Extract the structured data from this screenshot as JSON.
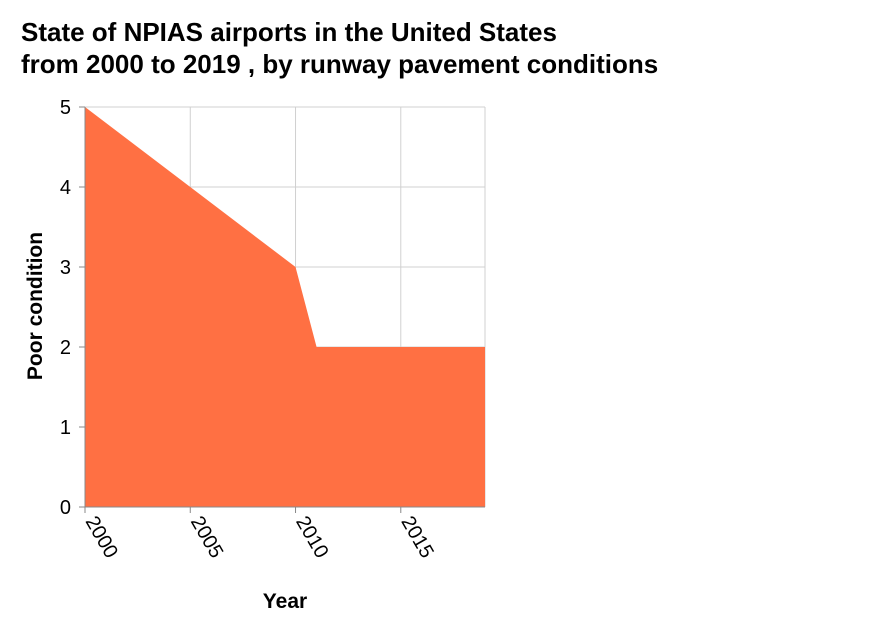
{
  "chart_data": {
    "type": "area",
    "title_lines": [
      "State of NPIAS airports in the United States",
      "from 2000 to 2019 , by runway pavement conditions"
    ],
    "xlabel": "Year",
    "ylabel": "Poor condition",
    "x": [
      2000,
      2001,
      2002,
      2003,
      2004,
      2005,
      2006,
      2007,
      2008,
      2009,
      2010,
      2011,
      2012,
      2013,
      2014,
      2015,
      2016,
      2017,
      2018,
      2019
    ],
    "series": [
      {
        "values": [
          5,
          4.8,
          4.6,
          4.4,
          4.2,
          4,
          3.8,
          3.6,
          3.4,
          3.2,
          3,
          2,
          2,
          2,
          2,
          2,
          2,
          2,
          2,
          2
        ]
      }
    ],
    "xlim": [
      2000,
      2019
    ],
    "ylim": [
      0,
      5
    ],
    "xticks": [
      "2000",
      "2005",
      "2010",
      "2015"
    ],
    "yticks": [
      "0",
      "1",
      "2",
      "3",
      "4",
      "5"
    ],
    "grid": true,
    "fill_color": "#ff7043",
    "grid_color": "#d0d0d0"
  }
}
